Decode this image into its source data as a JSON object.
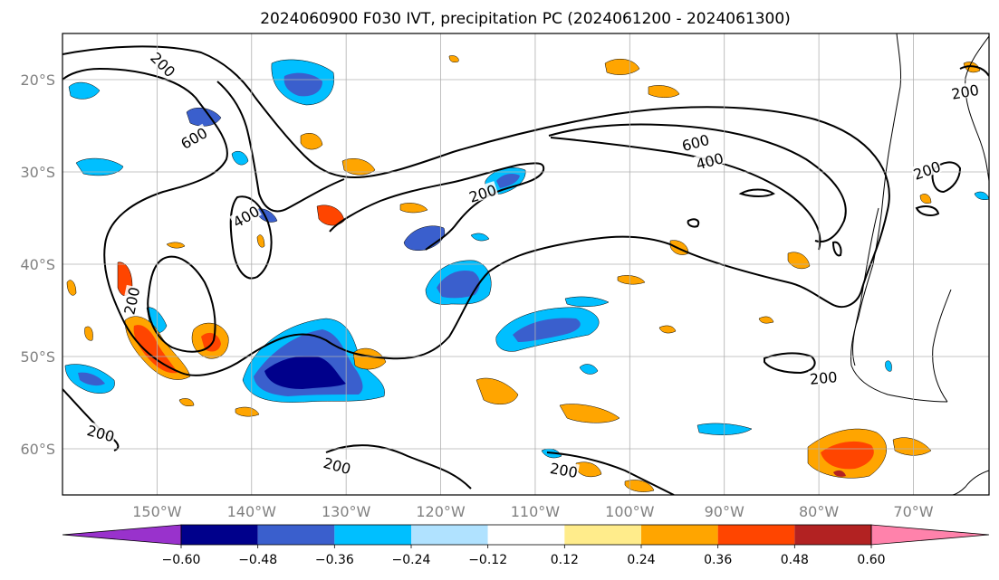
{
  "figure": {
    "title": "2024060900 F030 IVT, precipitation PC (2024061200 - 2024061300)"
  },
  "map": {
    "lat_labels": [
      "20°S",
      "30°S",
      "40°S",
      "50°S",
      "60°S"
    ],
    "lat_values": [
      -20,
      -30,
      -40,
      -50,
      -60
    ],
    "lon_labels": [
      "150°W",
      "140°W",
      "130°W",
      "120°W",
      "110°W",
      "100°W",
      "90°W",
      "80°W",
      "70°W"
    ],
    "lon_values": [
      -150,
      -140,
      -130,
      -120,
      -110,
      -100,
      -90,
      -80,
      -70
    ],
    "extent": {
      "lon_min": -160,
      "lon_max": -62,
      "lat_min": -65,
      "lat_max": -15
    },
    "ivt_contour_levels": [
      200,
      400,
      600
    ],
    "contour_labels": [
      {
        "text": "200",
        "lon": -149.5,
        "lat": -18.5,
        "rot": 45
      },
      {
        "text": "600",
        "lon": -146,
        "lat": -26.5,
        "rot": -30
      },
      {
        "text": "400",
        "lon": -140.5,
        "lat": -35,
        "rot": -30
      },
      {
        "text": "200",
        "lon": -152.5,
        "lat": -44,
        "rot": -78
      },
      {
        "text": "200",
        "lon": -115.5,
        "lat": -32.5,
        "rot": -18
      },
      {
        "text": "600",
        "lon": -93,
        "lat": -27,
        "rot": -15
      },
      {
        "text": "400",
        "lon": -91.5,
        "lat": -29,
        "rot": -15
      },
      {
        "text": "200",
        "lon": -64.5,
        "lat": -21.5,
        "rot": -10
      },
      {
        "text": "200",
        "lon": -68.5,
        "lat": -30,
        "rot": -20
      },
      {
        "text": "200",
        "lon": -79.5,
        "lat": -52.5,
        "rot": -5
      },
      {
        "text": "200",
        "lon": -156,
        "lat": -58.5,
        "rot": 15
      },
      {
        "text": "200",
        "lon": -131,
        "lat": -62,
        "rot": 15
      },
      {
        "text": "200",
        "lon": -107,
        "lat": -62.5,
        "rot": 10
      }
    ]
  },
  "colorbar": {
    "tick_labels": [
      "−0.60",
      "−0.48",
      "−0.36",
      "−0.24",
      "−0.12",
      "0.12",
      "0.24",
      "0.36",
      "0.48",
      "0.60"
    ],
    "bounds": [
      -0.72,
      -0.6,
      -0.48,
      -0.36,
      -0.24,
      -0.12,
      0.12,
      0.24,
      0.36,
      0.48,
      0.6,
      0.72
    ],
    "colors": [
      "#9932cc",
      "#00008b",
      "#3a5fcd",
      "#00bfff",
      "#b0e2ff",
      "#ffffff",
      "#ffec8b",
      "#ffa500",
      "#ff4500",
      "#b22222",
      "#ff82ab"
    ]
  }
}
